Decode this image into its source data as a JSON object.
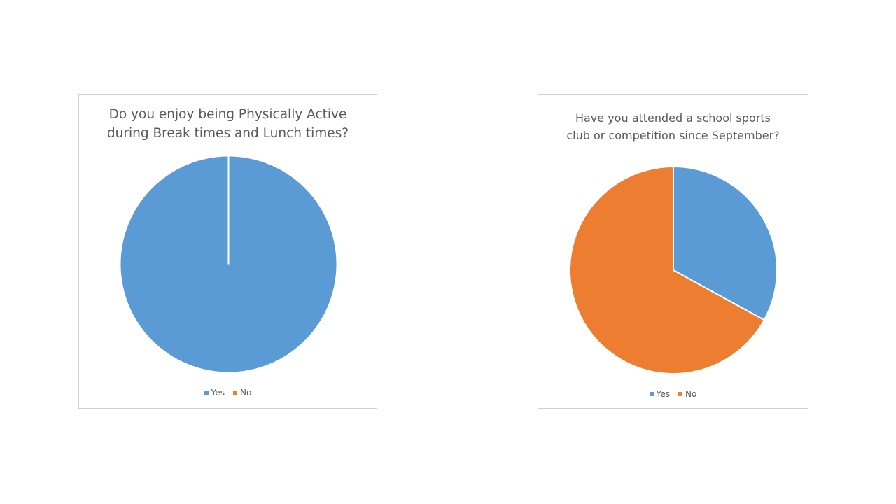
{
  "colors": {
    "yes": "#5B9BD5",
    "no": "#ED7D31",
    "border": "#d0d0d0",
    "text": "#595959"
  },
  "chart_data": [
    {
      "type": "pie",
      "title": "Do you enjoy being Physically Active\nduring Break times and Lunch times?",
      "categories": [
        "Yes",
        "No"
      ],
      "values": [
        100,
        0
      ],
      "colors": [
        "#5B9BD5",
        "#ED7D31"
      ],
      "legend_position": "bottom"
    },
    {
      "type": "pie",
      "title": "Have you attended a school sports club or competition since September?",
      "categories": [
        "Yes",
        "No"
      ],
      "values": [
        33,
        67
      ],
      "colors": [
        "#5B9BD5",
        "#ED7D31"
      ],
      "legend_position": "bottom"
    }
  ]
}
